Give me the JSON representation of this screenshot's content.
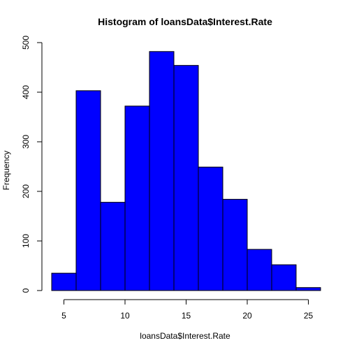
{
  "chart_data": {
    "type": "bar",
    "title": "Histogram of loansData$Interest.Rate",
    "xlabel": "loansData$Interest.Rate",
    "ylabel": "Frequency",
    "bins": [
      {
        "start": 4,
        "end": 6,
        "count": 35
      },
      {
        "start": 6,
        "end": 8,
        "count": 403
      },
      {
        "start": 8,
        "end": 10,
        "count": 178
      },
      {
        "start": 10,
        "end": 12,
        "count": 372
      },
      {
        "start": 12,
        "end": 14,
        "count": 482
      },
      {
        "start": 14,
        "end": 16,
        "count": 454
      },
      {
        "start": 16,
        "end": 18,
        "count": 249
      },
      {
        "start": 18,
        "end": 20,
        "count": 184
      },
      {
        "start": 20,
        "end": 22,
        "count": 83
      },
      {
        "start": 22,
        "end": 24,
        "count": 52
      },
      {
        "start": 24,
        "end": 26,
        "count": 6
      }
    ],
    "xlim": [
      4,
      26
    ],
    "ylim": [
      0,
      500
    ],
    "xticks": [
      5,
      10,
      15,
      20,
      25
    ],
    "yticks": [
      0,
      100,
      200,
      300,
      400,
      500
    ],
    "bar_color": "#0000ff",
    "bar_border_color": "#000000",
    "grid": false,
    "legend": "none"
  }
}
